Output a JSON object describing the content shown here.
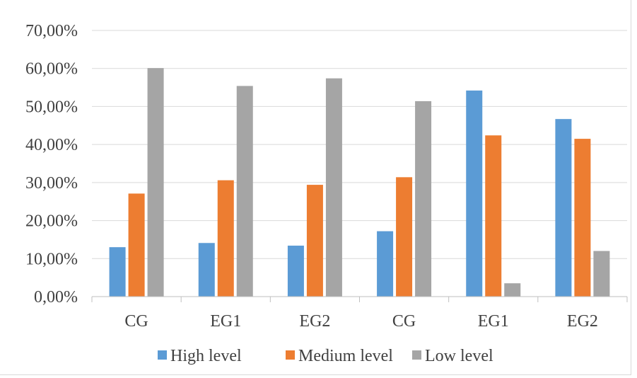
{
  "chart_data": {
    "type": "bar",
    "categories": [
      "CG",
      "EG1",
      "EG2",
      "CG",
      "EG1",
      "EG2"
    ],
    "series": [
      {
        "name": "High level",
        "color": "#5b9bd5",
        "values": [
          0.13,
          0.141,
          0.134,
          0.172,
          0.542,
          0.467
        ]
      },
      {
        "name": "Medium level",
        "color": "#ed7d31",
        "values": [
          0.271,
          0.306,
          0.294,
          0.314,
          0.424,
          0.415
        ]
      },
      {
        "name": "Low level",
        "color": "#a5a5a5",
        "values": [
          0.601,
          0.554,
          0.574,
          0.514,
          0.035,
          0.12
        ]
      }
    ],
    "yticks": [
      "0,00%",
      "10,00%",
      "20,00%",
      "30,00%",
      "40,00%",
      "50,00%",
      "60,00%",
      "70,00%"
    ],
    "ylim": [
      0,
      0.7
    ],
    "grid": true,
    "legend_position": "bottom",
    "title": "",
    "xlabel": "",
    "ylabel": ""
  }
}
